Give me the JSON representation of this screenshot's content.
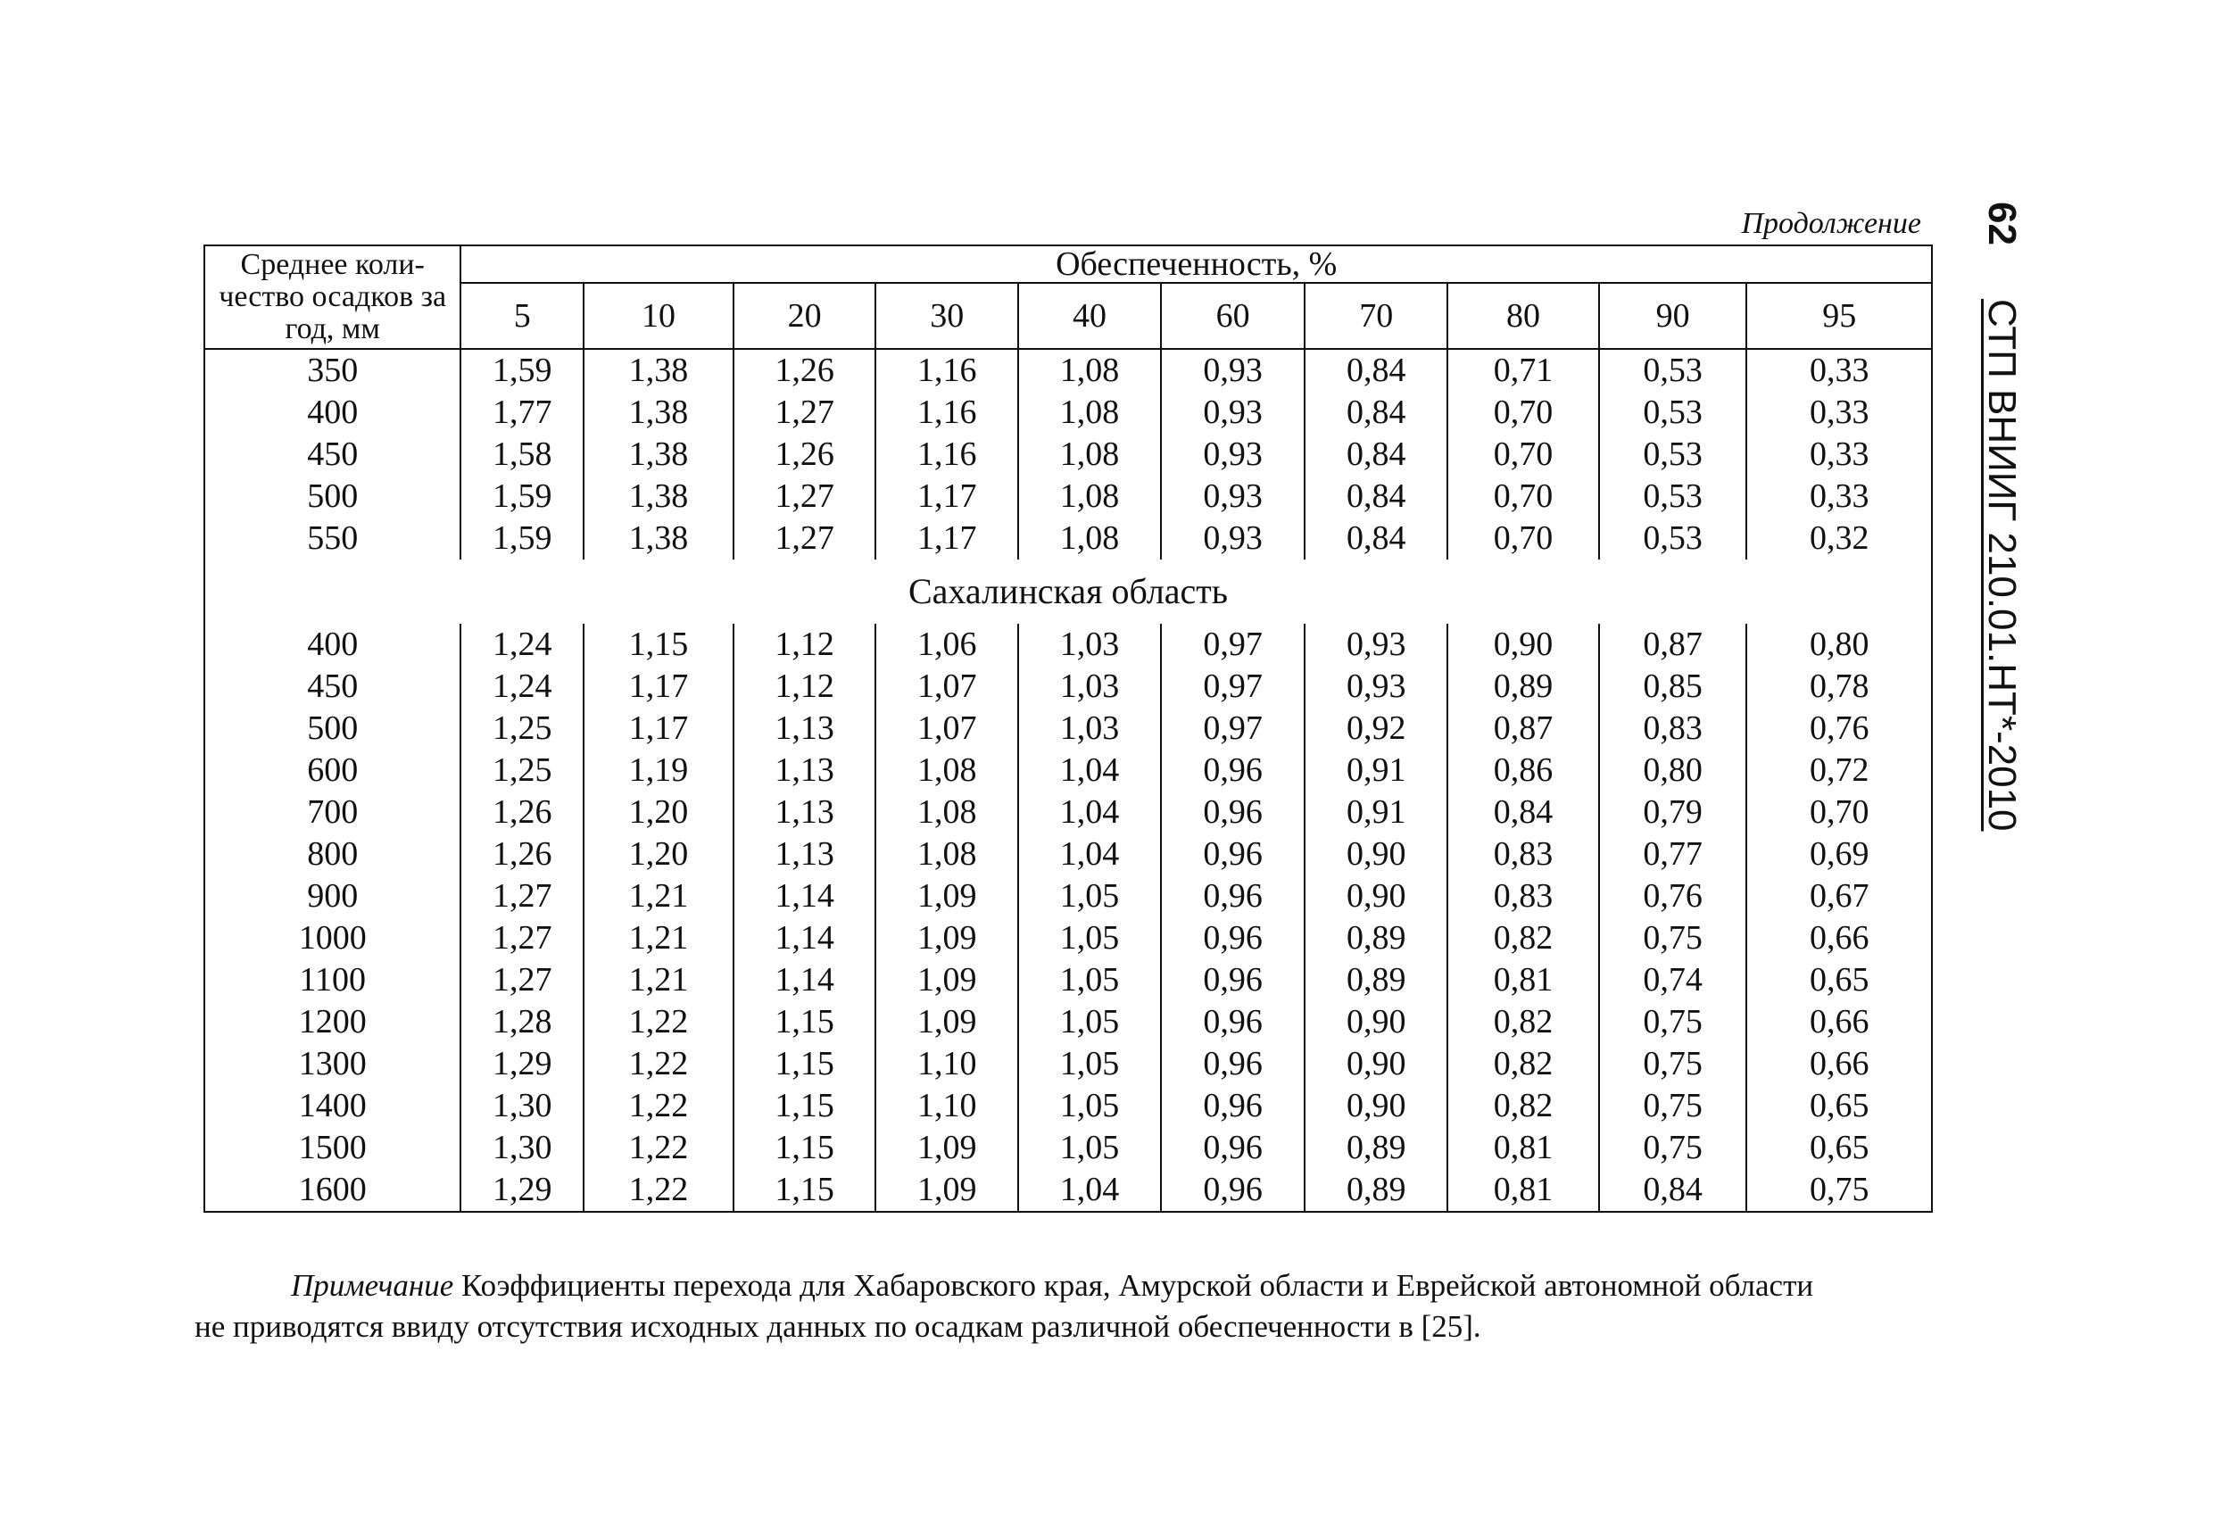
{
  "header": {
    "continuation": "Продолжение",
    "page_number": "62",
    "doc_code": "СТП ВНИИГ 210.01.НТ*-2010"
  },
  "table": {
    "first_col_header": "Среднее коли-чество осадков за год, мм",
    "group_header": "Обеспеченность, %",
    "columns": [
      "5",
      "10",
      "20",
      "30",
      "40",
      "60",
      "70",
      "80",
      "90",
      "95"
    ],
    "block1_rows": [
      {
        "label": "350",
        "values": [
          "1,59",
          "1,38",
          "1,26",
          "1,16",
          "1,08",
          "0,93",
          "0,84",
          "0,71",
          "0,53",
          "0,33"
        ]
      },
      {
        "label": "400",
        "values": [
          "1,77",
          "1,38",
          "1,27",
          "1,16",
          "1,08",
          "0,93",
          "0,84",
          "0,70",
          "0,53",
          "0,33"
        ]
      },
      {
        "label": "450",
        "values": [
          "1,58",
          "1,38",
          "1,26",
          "1,16",
          "1,08",
          "0,93",
          "0,84",
          "0,70",
          "0,53",
          "0,33"
        ]
      },
      {
        "label": "500",
        "values": [
          "1,59",
          "1,38",
          "1,27",
          "1,17",
          "1,08",
          "0,93",
          "0,84",
          "0,70",
          "0,53",
          "0,33"
        ]
      },
      {
        "label": "550",
        "values": [
          "1,59",
          "1,38",
          "1,27",
          "1,17",
          "1,08",
          "0,93",
          "0,84",
          "0,70",
          "0,53",
          "0,32"
        ]
      }
    ],
    "section_title": "Сахалинская область",
    "block2_rows": [
      {
        "label": "400",
        "values": [
          "1,24",
          "1,15",
          "1,12",
          "1,06",
          "1,03",
          "0,97",
          "0,93",
          "0,90",
          "0,87",
          "0,80"
        ]
      },
      {
        "label": "450",
        "values": [
          "1,24",
          "1,17",
          "1,12",
          "1,07",
          "1,03",
          "0,97",
          "0,93",
          "0,89",
          "0,85",
          "0,78"
        ]
      },
      {
        "label": "500",
        "values": [
          "1,25",
          "1,17",
          "1,13",
          "1,07",
          "1,03",
          "0,97",
          "0,92",
          "0,87",
          "0,83",
          "0,76"
        ]
      },
      {
        "label": "600",
        "values": [
          "1,25",
          "1,19",
          "1,13",
          "1,08",
          "1,04",
          "0,96",
          "0,91",
          "0,86",
          "0,80",
          "0,72"
        ]
      },
      {
        "label": "700",
        "values": [
          "1,26",
          "1,20",
          "1,13",
          "1,08",
          "1,04",
          "0,96",
          "0,91",
          "0,84",
          "0,79",
          "0,70"
        ]
      },
      {
        "label": "800",
        "values": [
          "1,26",
          "1,20",
          "1,13",
          "1,08",
          "1,04",
          "0,96",
          "0,90",
          "0,83",
          "0,77",
          "0,69"
        ]
      },
      {
        "label": "900",
        "values": [
          "1,27",
          "1,21",
          "1,14",
          "1,09",
          "1,05",
          "0,96",
          "0,90",
          "0,83",
          "0,76",
          "0,67"
        ]
      },
      {
        "label": "1000",
        "values": [
          "1,27",
          "1,21",
          "1,14",
          "1,09",
          "1,05",
          "0,96",
          "0,89",
          "0,82",
          "0,75",
          "0,66"
        ]
      },
      {
        "label": "1100",
        "values": [
          "1,27",
          "1,21",
          "1,14",
          "1,09",
          "1,05",
          "0,96",
          "0,89",
          "0,81",
          "0,74",
          "0,65"
        ]
      },
      {
        "label": "1200",
        "values": [
          "1,28",
          "1,22",
          "1,15",
          "1,09",
          "1,05",
          "0,96",
          "0,90",
          "0,82",
          "0,75",
          "0,66"
        ]
      },
      {
        "label": "1300",
        "values": [
          "1,29",
          "1,22",
          "1,15",
          "1,10",
          "1,05",
          "0,96",
          "0,90",
          "0,82",
          "0,75",
          "0,66"
        ]
      },
      {
        "label": "1400",
        "values": [
          "1,30",
          "1,22",
          "1,15",
          "1,10",
          "1,05",
          "0,96",
          "0,90",
          "0,82",
          "0,75",
          "0,65"
        ]
      },
      {
        "label": "1500",
        "values": [
          "1,30",
          "1,22",
          "1,15",
          "1,09",
          "1,05",
          "0,96",
          "0,89",
          "0,81",
          "0,75",
          "0,65"
        ]
      },
      {
        "label": "1600",
        "values": [
          "1,29",
          "1,22",
          "1,15",
          "1,09",
          "1,04",
          "0,96",
          "0,89",
          "0,81",
          "0,84",
          "0,75"
        ]
      }
    ]
  },
  "note": {
    "label": "Примечание",
    "line1": "Коэффициенты перехода для Хабаровского края, Амурской области и Еврейской автономной области",
    "line2": "не приводятся ввиду отсутствия исходных данных по осадкам различной обеспеченности в [25]."
  }
}
